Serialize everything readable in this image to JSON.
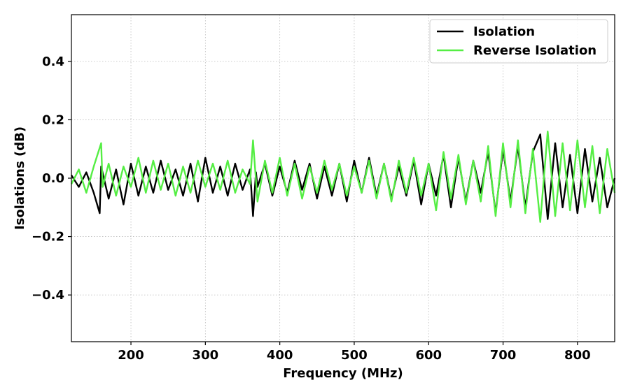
{
  "chart_data": {
    "type": "line",
    "xlabel": "Frequency (MHz)",
    "ylabel": "Isolations (dB)",
    "xlim": [
      120,
      850
    ],
    "ylim": [
      -0.56,
      0.56
    ],
    "x_ticks": [
      200,
      300,
      400,
      500,
      600,
      700,
      800
    ],
    "x_tick_labels": [
      "200",
      "300",
      "400",
      "500",
      "600",
      "700",
      "800"
    ],
    "y_ticks": [
      -0.4,
      -0.2,
      0.0,
      0.2,
      0.4
    ],
    "y_tick_labels": [
      "−0.4",
      "−0.2",
      "0.0",
      "0.2",
      "0.4"
    ],
    "grid": true,
    "legend_position": "top-right",
    "series": [
      {
        "name": "Isolation",
        "color": "#000000",
        "x": [
          120,
          130,
          140,
          150,
          158,
          160,
          170,
          180,
          190,
          200,
          210,
          220,
          230,
          240,
          250,
          260,
          270,
          280,
          290,
          300,
          310,
          320,
          330,
          340,
          350,
          360,
          364,
          368,
          370,
          380,
          390,
          400,
          410,
          420,
          430,
          440,
          450,
          460,
          470,
          480,
          490,
          500,
          510,
          520,
          530,
          540,
          550,
          560,
          570,
          580,
          590,
          600,
          610,
          620,
          630,
          640,
          650,
          660,
          670,
          680,
          690,
          700,
          710,
          720,
          730,
          740,
          750,
          760,
          770,
          780,
          790,
          800,
          810,
          820,
          830,
          840,
          850
        ],
        "y": [
          0.01,
          -0.03,
          0.02,
          -0.05,
          -0.12,
          0.04,
          -0.07,
          0.03,
          -0.09,
          0.05,
          -0.06,
          0.04,
          -0.05,
          0.06,
          -0.04,
          0.03,
          -0.06,
          0.05,
          -0.08,
          0.07,
          -0.05,
          0.04,
          -0.06,
          0.05,
          -0.04,
          0.03,
          -0.13,
          0.02,
          -0.03,
          0.05,
          -0.06,
          0.04,
          -0.05,
          0.06,
          -0.04,
          0.05,
          -0.07,
          0.04,
          -0.06,
          0.05,
          -0.08,
          0.06,
          -0.05,
          0.07,
          -0.06,
          0.05,
          -0.07,
          0.04,
          -0.06,
          0.06,
          -0.09,
          0.05,
          -0.06,
          0.08,
          -0.1,
          0.07,
          -0.08,
          0.06,
          -0.05,
          0.09,
          -0.12,
          0.1,
          -0.08,
          0.11,
          -0.1,
          0.09,
          0.15,
          -0.14,
          0.12,
          -0.1,
          0.08,
          -0.12,
          0.1,
          -0.08,
          0.07,
          -0.1,
          0.0
        ]
      },
      {
        "name": "Reverse Isolation",
        "color": "#55ee44",
        "x": [
          120,
          130,
          140,
          150,
          160,
          162,
          170,
          180,
          190,
          200,
          210,
          220,
          230,
          240,
          250,
          260,
          270,
          280,
          290,
          300,
          310,
          320,
          330,
          340,
          350,
          360,
          364,
          370,
          380,
          390,
          400,
          410,
          420,
          430,
          440,
          450,
          460,
          470,
          480,
          490,
          500,
          510,
          520,
          530,
          540,
          550,
          560,
          570,
          580,
          590,
          600,
          610,
          620,
          630,
          640,
          650,
          660,
          670,
          680,
          690,
          700,
          710,
          720,
          730,
          740,
          750,
          760,
          770,
          780,
          790,
          800,
          810,
          820,
          830,
          840,
          850
        ],
        "y": [
          -0.02,
          0.03,
          -0.05,
          0.04,
          0.12,
          -0.03,
          0.05,
          -0.06,
          0.04,
          -0.03,
          0.07,
          -0.05,
          0.06,
          -0.04,
          0.05,
          -0.06,
          0.04,
          -0.05,
          0.06,
          -0.03,
          0.05,
          -0.04,
          0.06,
          -0.05,
          0.03,
          -0.02,
          0.13,
          -0.08,
          0.06,
          -0.05,
          0.07,
          -0.06,
          0.05,
          -0.07,
          0.04,
          -0.05,
          0.06,
          -0.04,
          0.05,
          -0.06,
          0.04,
          -0.05,
          0.06,
          -0.07,
          0.05,
          -0.08,
          0.06,
          -0.05,
          0.07,
          -0.06,
          0.05,
          -0.11,
          0.09,
          -0.07,
          0.08,
          -0.09,
          0.06,
          -0.08,
          0.11,
          -0.13,
          0.12,
          -0.1,
          0.13,
          -0.12,
          0.1,
          -0.15,
          0.16,
          -0.13,
          0.12,
          -0.11,
          0.13,
          -0.1,
          0.11,
          -0.12,
          0.1,
          -0.05
        ]
      }
    ]
  }
}
